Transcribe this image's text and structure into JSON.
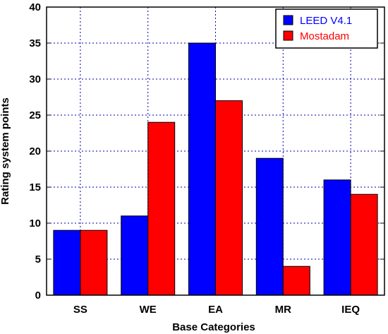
{
  "chart_data": {
    "type": "bar",
    "categories": [
      "SS",
      "WE",
      "EA",
      "MR",
      "IEQ"
    ],
    "series": [
      {
        "name": "LEED V4.1",
        "color": "#0000ff",
        "values": [
          9,
          11,
          35,
          19,
          16
        ]
      },
      {
        "name": "Mostadam",
        "color": "#ff0000",
        "values": [
          9,
          24,
          27,
          4,
          14
        ]
      }
    ],
    "yticks": [
      "0",
      "5",
      "10",
      "15",
      "20",
      "25",
      "30",
      "35",
      "40"
    ],
    "ylim": [
      0,
      40
    ],
    "xlabel": "Base Categories",
    "ylabel": "Rating system points",
    "grid": true,
    "legend_position": "top-right"
  }
}
